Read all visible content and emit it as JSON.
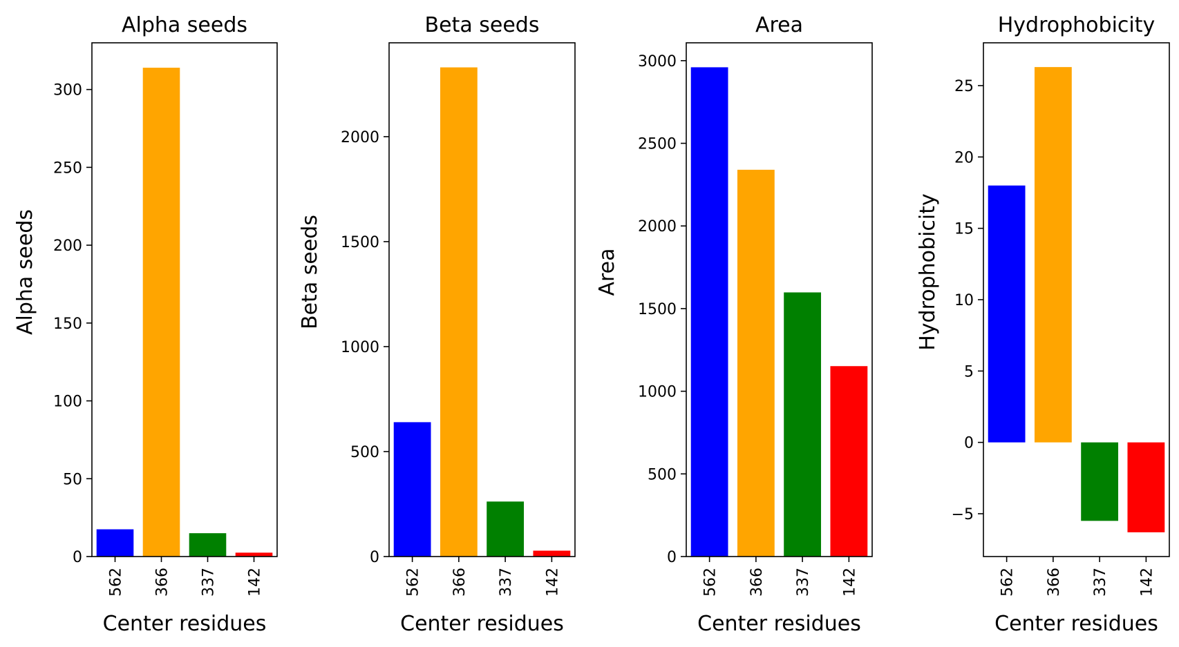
{
  "chart_data": [
    {
      "type": "bar",
      "title": "Alpha seeds",
      "xlabel": "Center residues",
      "ylabel": "Alpha seeds",
      "categories": [
        "562",
        "366",
        "337",
        "142"
      ],
      "values": [
        17.5,
        314,
        15,
        2.5
      ],
      "colors": [
        "#0000ff",
        "#ffa500",
        "#008000",
        "#ff0000"
      ],
      "ylim": [
        0,
        330
      ],
      "yticks": [
        0,
        50,
        100,
        150,
        200,
        250,
        300
      ],
      "ytick_labels": [
        "0",
        "50",
        "100",
        "150",
        "200",
        "250",
        "300"
      ]
    },
    {
      "type": "bar",
      "title": "Beta seeds",
      "xlabel": "Center residues",
      "ylabel": "Beta seeds",
      "categories": [
        "562",
        "366",
        "337",
        "142"
      ],
      "values": [
        640,
        2330,
        262,
        28
      ],
      "colors": [
        "#0000ff",
        "#ffa500",
        "#008000",
        "#ff0000"
      ],
      "ylim": [
        0,
        2447
      ],
      "yticks": [
        0,
        500,
        1000,
        1500,
        2000
      ],
      "ytick_labels": [
        "0",
        "500",
        "1000",
        "1500",
        "2000"
      ]
    },
    {
      "type": "bar",
      "title": "Area",
      "xlabel": "Center residues",
      "ylabel": "Area",
      "categories": [
        "562",
        "366",
        "337",
        "142"
      ],
      "values": [
        2960,
        2340,
        1598,
        1152
      ],
      "colors": [
        "#0000ff",
        "#ffa500",
        "#008000",
        "#ff0000"
      ],
      "ylim": [
        0,
        3108
      ],
      "yticks": [
        0,
        500,
        1000,
        1500,
        2000,
        2500,
        3000
      ],
      "ytick_labels": [
        "0",
        "500",
        "1000",
        "1500",
        "2000",
        "2500",
        "3000"
      ]
    },
    {
      "type": "bar",
      "title": "Hydrophobicity",
      "xlabel": "Center residues",
      "ylabel": "Hydrophobicity",
      "categories": [
        "562",
        "366",
        "337",
        "142"
      ],
      "values": [
        18,
        26.3,
        -5.5,
        -6.3
      ],
      "colors": [
        "#0000ff",
        "#ffa500",
        "#008000",
        "#ff0000"
      ],
      "ylim": [
        -8,
        28
      ],
      "yticks": [
        -5,
        0,
        5,
        10,
        15,
        20,
        25
      ],
      "ytick_labels": [
        "−5",
        "0",
        "5",
        "10",
        "15",
        "20",
        "25"
      ]
    }
  ]
}
